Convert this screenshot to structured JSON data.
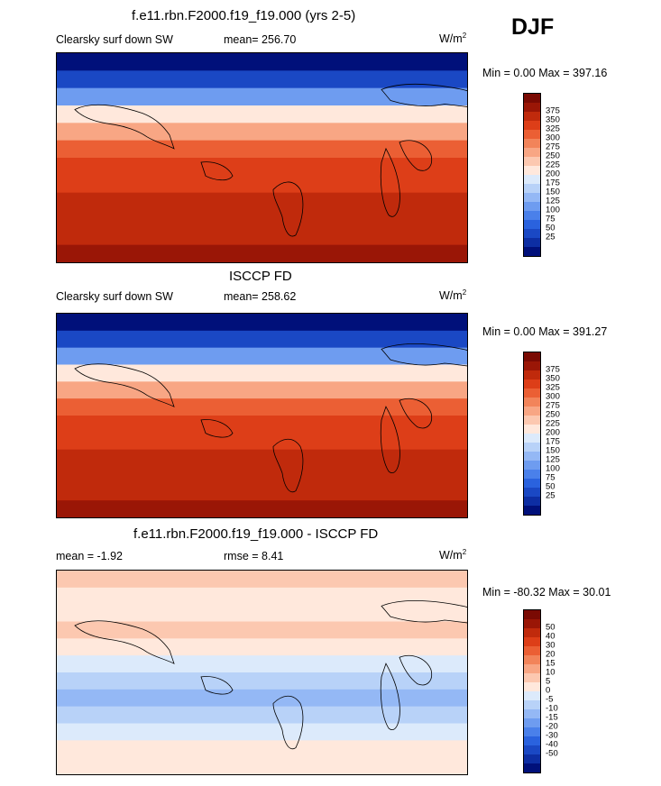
{
  "season": "DJF",
  "colors": {
    "abs": [
      "#00107a",
      "#0d2ea3",
      "#1a48c4",
      "#2a62de",
      "#4a80ea",
      "#6e9cf0",
      "#94b8f5",
      "#b8d2f8",
      "#dceafb",
      "#ffe8dc",
      "#fcc8b0",
      "#f8a684",
      "#f2845a",
      "#eb5f34",
      "#dd3e18",
      "#c02a0c",
      "#9a1606",
      "#7a0a03"
    ],
    "diff": [
      "#00107a",
      "#0d2ea3",
      "#1a48c4",
      "#2a62de",
      "#4a80ea",
      "#6e9cf0",
      "#94b8f5",
      "#b8d2f8",
      "#dceafb",
      "#ffe8dc",
      "#fcc8b0",
      "#f8a684",
      "#f2845a",
      "#eb5f34",
      "#dd3e18",
      "#c02a0c",
      "#9a1606",
      "#7a0a03"
    ]
  },
  "panels": [
    {
      "title": "f.e11.rbn.F2000.f19_f19.000 (yrs 2-5)",
      "left_label": "Clearsky surf down SW",
      "stat": "mean= 256.70",
      "units": "W/m",
      "units_sup": "2",
      "minmax": "Min =   0.00 Max = 397.16",
      "ticks": [
        "375",
        "350",
        "325",
        "300",
        "275",
        "250",
        "225",
        "200",
        "175",
        "150",
        "125",
        "100",
        "75",
        "50",
        "25"
      ]
    },
    {
      "title": "ISCCP FD",
      "left_label": "Clearsky surf down SW",
      "stat": "mean= 258.62",
      "units": "W/m",
      "units_sup": "2",
      "minmax": "Min =   0.00 Max = 391.27",
      "ticks": [
        "375",
        "350",
        "325",
        "300",
        "275",
        "250",
        "225",
        "200",
        "175",
        "150",
        "125",
        "100",
        "75",
        "50",
        "25"
      ]
    },
    {
      "title": "f.e11.rbn.F2000.f19_f19.000 - ISCCP FD",
      "left_label": "mean =  -1.92",
      "stat": "rmse =   8.41",
      "units": "W/m",
      "units_sup": "2",
      "minmax": "Min = -80.32 Max =  30.01",
      "ticks": [
        "50",
        "40",
        "30",
        "20",
        "15",
        "10",
        "5",
        "0",
        "-5",
        "-10",
        "-15",
        "-20",
        "-30",
        "-40",
        "-50"
      ]
    }
  ]
}
